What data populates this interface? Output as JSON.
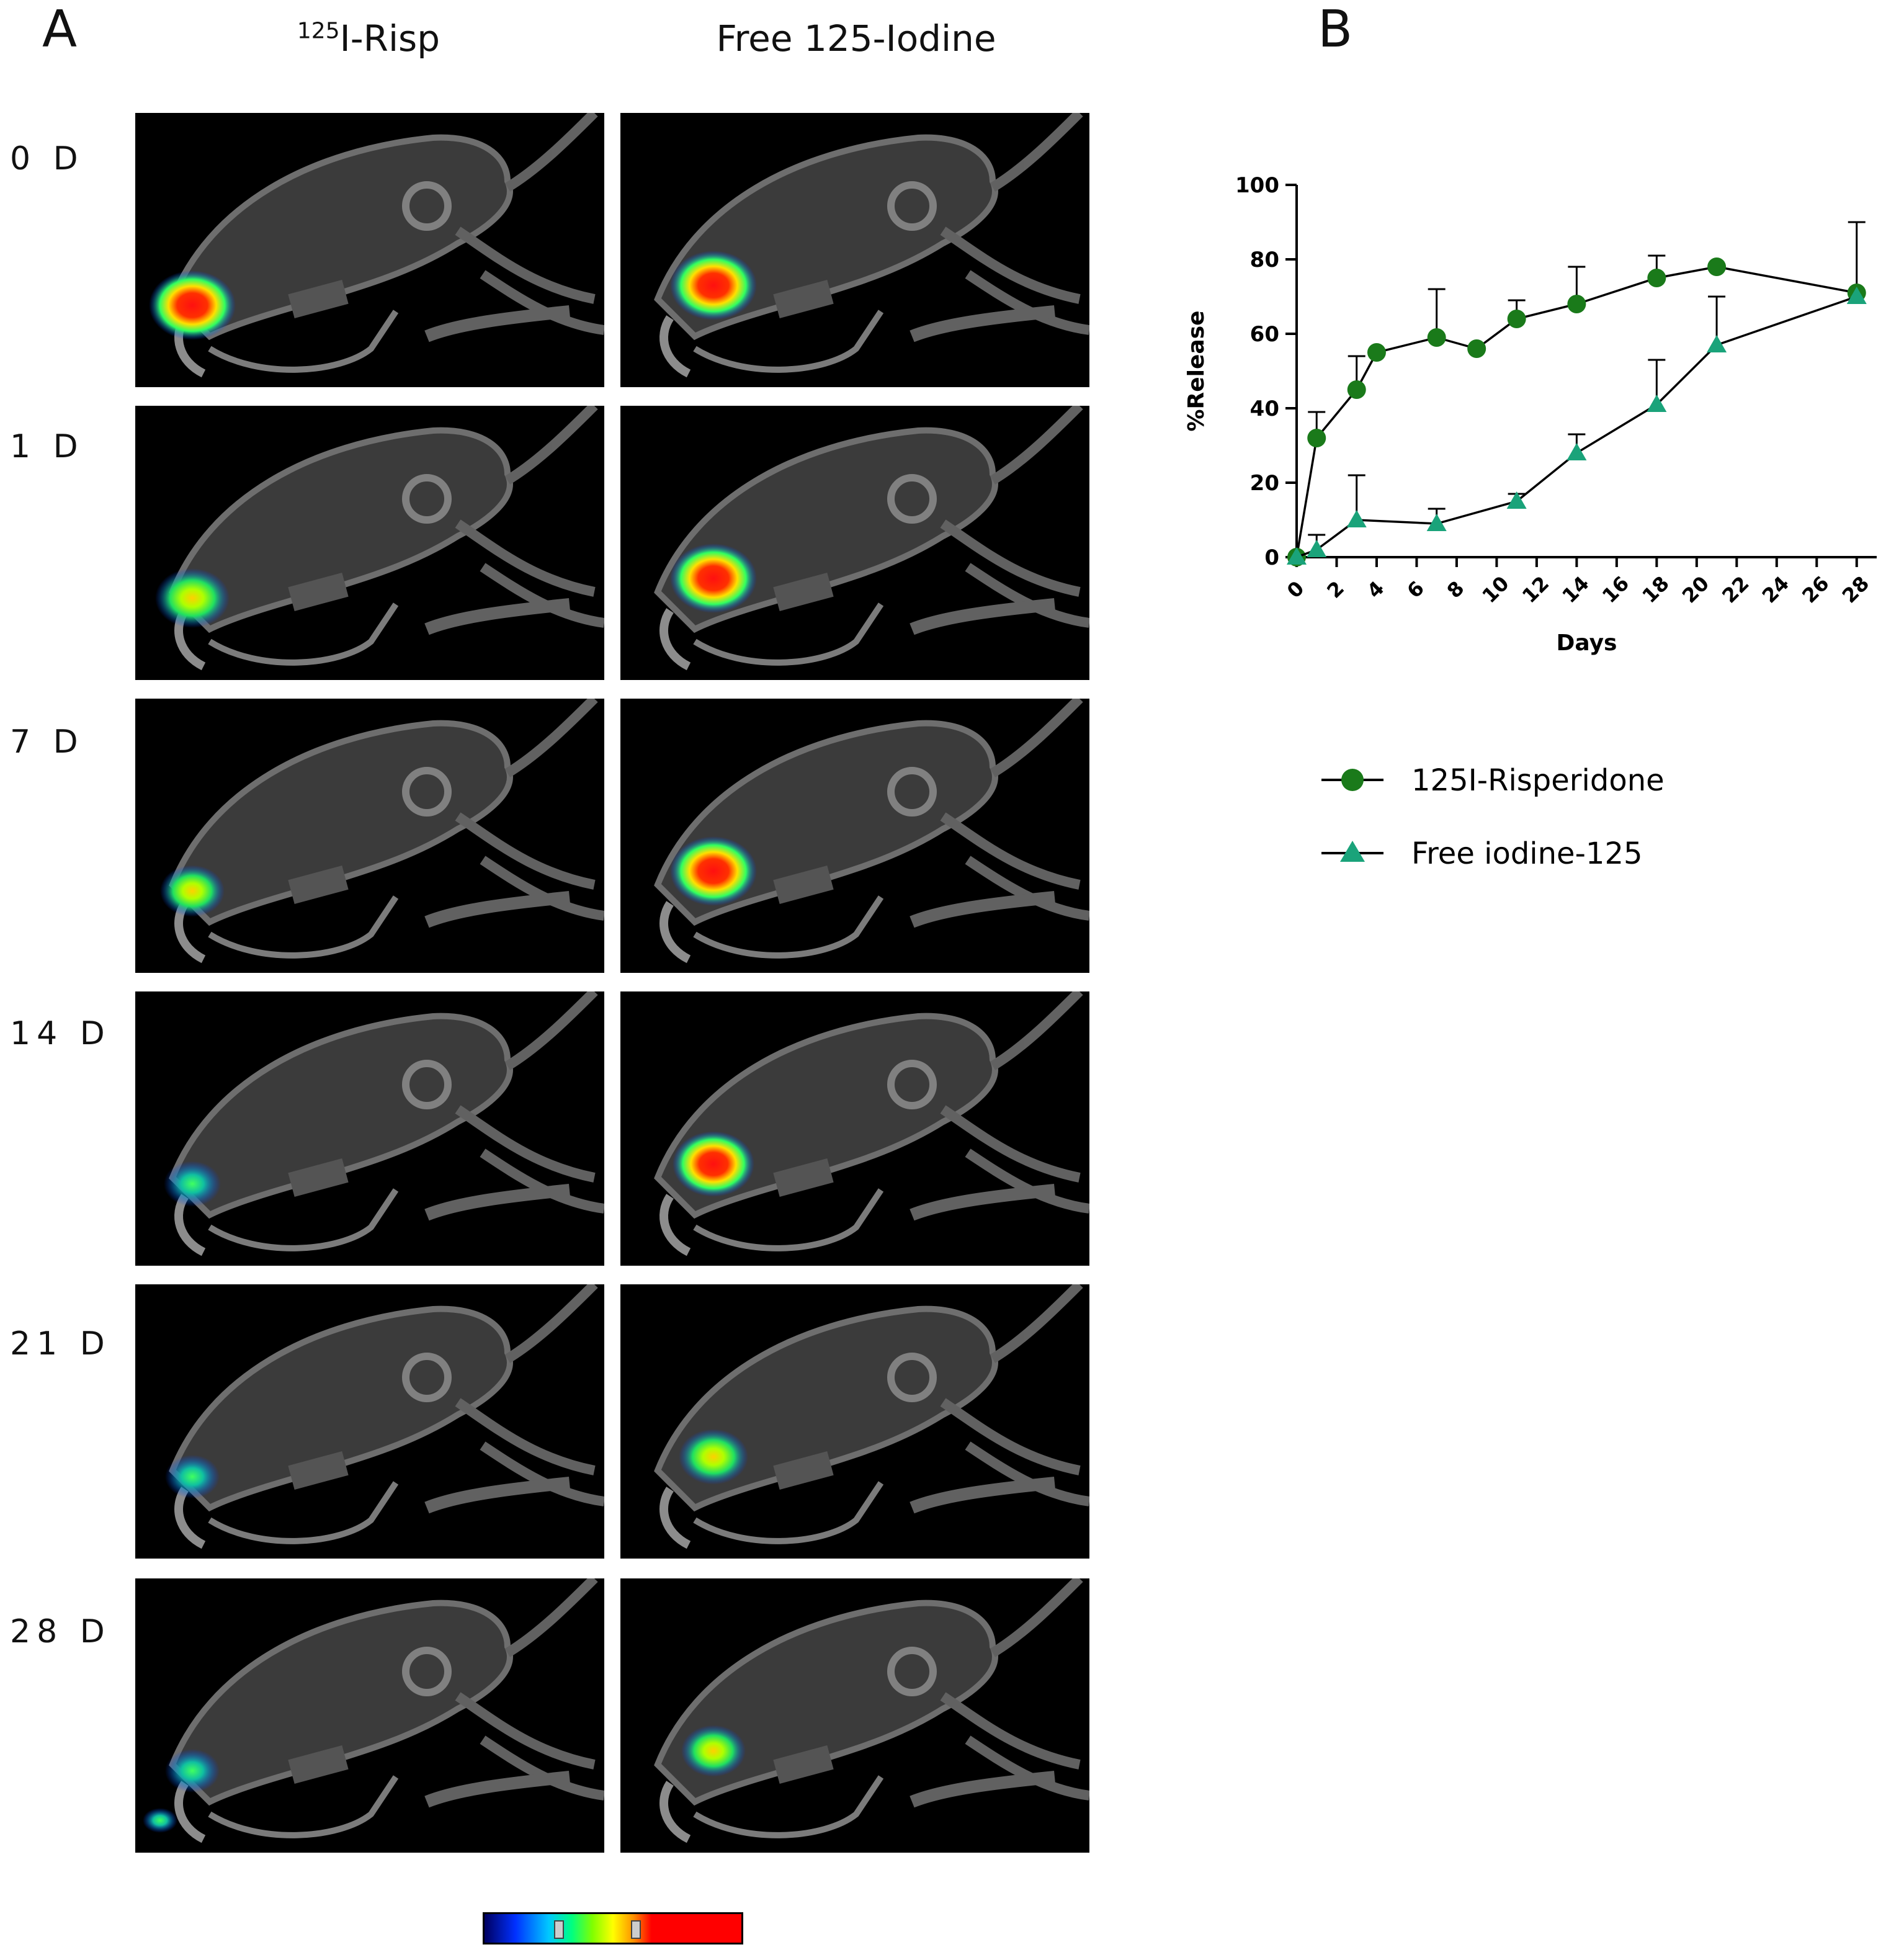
{
  "panel_a": {
    "letter": "A",
    "columns": [
      {
        "sup": "125",
        "rest": "I-Risp"
      },
      {
        "label": "Free 125-Iodine"
      }
    ],
    "rows": [
      "0 D",
      "1 D",
      "7 D",
      "14 D",
      "21 D",
      "28 D"
    ],
    "hotspot_intensity": {
      "risp": [
        1.0,
        0.75,
        0.55,
        0.4,
        0.35,
        0.35
      ],
      "free": [
        1.0,
        1.0,
        1.0,
        0.9,
        0.65,
        0.55
      ]
    },
    "colorbar": {
      "colors": [
        "#000060",
        "#0030ff",
        "#00c8ff",
        "#00ff80",
        "#80ff00",
        "#ffff00",
        "#ff9000",
        "#ff0000"
      ]
    }
  },
  "panel_b": {
    "letter": "B"
  },
  "chart_data": {
    "type": "line",
    "title": "",
    "xlabel": "Days",
    "ylabel": "%Release",
    "xlim": [
      0,
      29
    ],
    "ylim": [
      0,
      100
    ],
    "x_ticks": [
      0,
      2,
      4,
      6,
      8,
      10,
      12,
      14,
      16,
      18,
      20,
      22,
      24,
      26,
      28
    ],
    "y_ticks": [
      0,
      20,
      40,
      60,
      80,
      100
    ],
    "grid": false,
    "legend_position": "below",
    "series": [
      {
        "name": "125I-Risperidone",
        "marker": "circle",
        "color": "#1a7a1a",
        "x": [
          0,
          1,
          3,
          4,
          7,
          9,
          11,
          14,
          18,
          21,
          28
        ],
        "y": [
          0,
          32,
          45,
          55,
          59,
          56,
          64,
          68,
          75,
          78,
          71
        ],
        "err_up": [
          0,
          7,
          9,
          0,
          13,
          0,
          5,
          10,
          6,
          0,
          19
        ]
      },
      {
        "name": "Free iodine-125",
        "marker": "triangle",
        "color": "#1aa37a",
        "x": [
          0,
          1,
          3,
          7,
          11,
          14,
          18,
          21,
          28
        ],
        "y": [
          0,
          2,
          10,
          9,
          15,
          28,
          41,
          57,
          70
        ],
        "err_up": [
          0,
          4,
          12,
          4,
          2,
          5,
          12,
          13,
          0
        ]
      }
    ]
  }
}
